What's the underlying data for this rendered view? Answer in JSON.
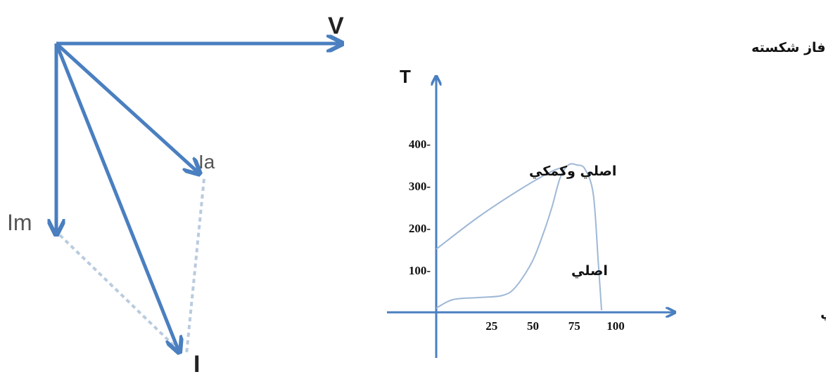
{
  "phasor": {
    "v_label": "V",
    "ia_label": "Ia",
    "im_label": "Im",
    "i_label": "I",
    "vector_color": "#4a7fc0",
    "dash_color": "#b9cbdf"
  },
  "chart_data": {
    "type": "line",
    "title": "منحني كاركرد موتور فاز شكسته",
    "ylabel": "T",
    "xlabel": "درصد دور نامي",
    "x_ticks": [
      "25",
      "50",
      "75",
      "100"
    ],
    "y_ticks": [
      "100-",
      "200-",
      "300-",
      "400-"
    ],
    "xlim": [
      0,
      100
    ],
    "ylim": [
      0,
      400
    ],
    "axis_color": "#4a7fc0",
    "curve_color": "#9fb8d6",
    "series": [
      {
        "name": "اصلي وكمكي",
        "x": [
          0,
          25,
          50,
          70,
          78
        ],
        "y": [
          150,
          225,
          290,
          335,
          345
        ]
      },
      {
        "name": "اصلي",
        "x": [
          0,
          10,
          25,
          40,
          48,
          58,
          65,
          70,
          75,
          80,
          85,
          90,
          95,
          98,
          100
        ],
        "y": [
          10,
          30,
          35,
          40,
          60,
          120,
          190,
          250,
          320,
          350,
          350,
          340,
          280,
          120,
          5
        ]
      }
    ]
  }
}
